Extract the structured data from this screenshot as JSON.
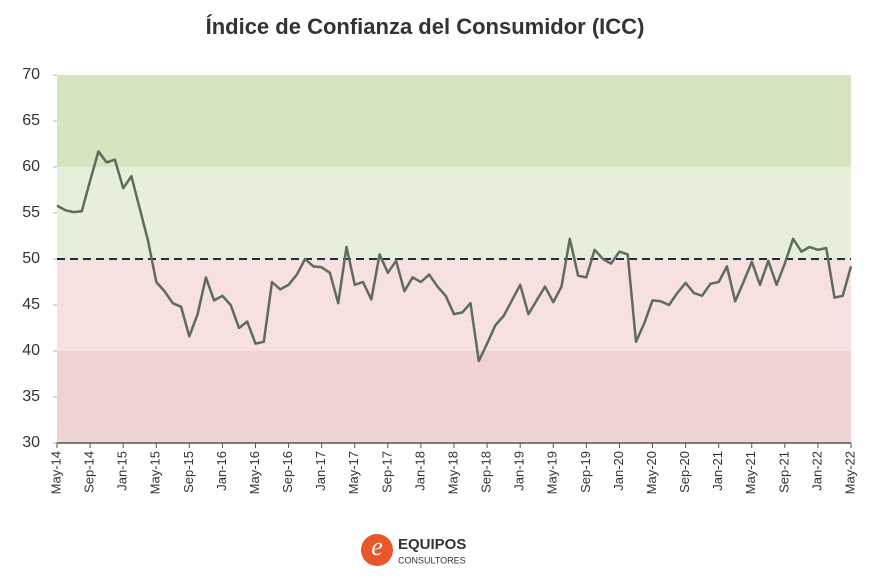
{
  "chart_data": {
    "type": "line",
    "title": "Índice de Confianza del Consumidor (ICC)",
    "categories": [
      "May-14",
      null,
      null,
      null,
      "Sep-14",
      null,
      null,
      null,
      "Jan-15",
      null,
      null,
      null,
      "May-15",
      null,
      null,
      null,
      "Sep-15",
      null,
      null,
      null,
      "Jan-16",
      null,
      null,
      null,
      "May-16",
      null,
      null,
      null,
      "Sep-16",
      null,
      null,
      null,
      "Jan-17",
      null,
      null,
      null,
      "May-17",
      null,
      null,
      null,
      "Sep-17",
      null,
      null,
      null,
      "Jan-18",
      null,
      null,
      null,
      "May-18",
      null,
      null,
      null,
      "Sep-18",
      null,
      null,
      null,
      "Jan-19",
      null,
      null,
      null,
      "May-19",
      null,
      null,
      null,
      "Sep-19",
      null,
      null,
      null,
      "Jan-20",
      null,
      null,
      null,
      "May-20",
      null,
      null,
      null,
      "Sep-20",
      null,
      null,
      null,
      "Jan-21",
      null,
      null,
      null,
      "May-21",
      null,
      null,
      null,
      "Sep-21",
      null,
      null,
      null,
      "Jan-22",
      null,
      null,
      null,
      "May-22"
    ],
    "values": [
      55.8,
      55.3,
      55.1,
      55.2,
      58.5,
      61.7,
      60.5,
      60.8,
      57.7,
      59,
      55.5,
      52,
      47.5,
      46.5,
      45.2,
      44.8,
      41.6,
      44,
      48,
      45.5,
      46,
      45,
      42.5,
      43.2,
      40.8,
      41,
      47.5,
      46.7,
      47.2,
      48.3,
      50,
      49.2,
      49.1,
      48.5,
      45.2,
      51.3,
      47.2,
      47.5,
      45.6,
      50.5,
      48.5,
      49.8,
      46.5,
      48,
      47.5,
      48.3,
      47,
      46,
      44,
      44.2,
      45.2,
      38.9,
      40.8,
      42.8,
      43.8,
      45.5,
      47.2,
      44,
      45.5,
      47,
      45.3,
      47,
      52.2,
      48.2,
      48,
      51,
      50,
      49.5,
      50.8,
      50.5,
      41,
      43,
      45.5,
      45.4,
      45,
      46.3,
      47.4,
      46.3,
      46,
      47.3,
      47.5,
      49.2,
      45.4,
      47.5,
      49.7,
      47.2,
      49.8,
      47.2,
      49.5,
      52.2,
      50.8,
      51.3,
      51,
      51.2,
      45.8,
      46,
      49.2
    ],
    "color": "#5f6b5c",
    "ylim": [
      30,
      70
    ],
    "yticks": [
      30,
      35,
      40,
      45,
      50,
      55,
      60,
      65,
      70
    ],
    "bands": [
      {
        "from": 30,
        "to": 40,
        "color": "#efd3d3"
      },
      {
        "from": 40,
        "to": 50,
        "color": "#f6e1e0"
      },
      {
        "from": 50,
        "to": 60,
        "color": "#e6efd9"
      },
      {
        "from": 60,
        "to": 70,
        "color": "#d6e5c0"
      }
    ],
    "reference_line": 50
  },
  "logo": {
    "mark": "e",
    "name": "EQUIPOS",
    "tagline": "CONSULTORES"
  }
}
